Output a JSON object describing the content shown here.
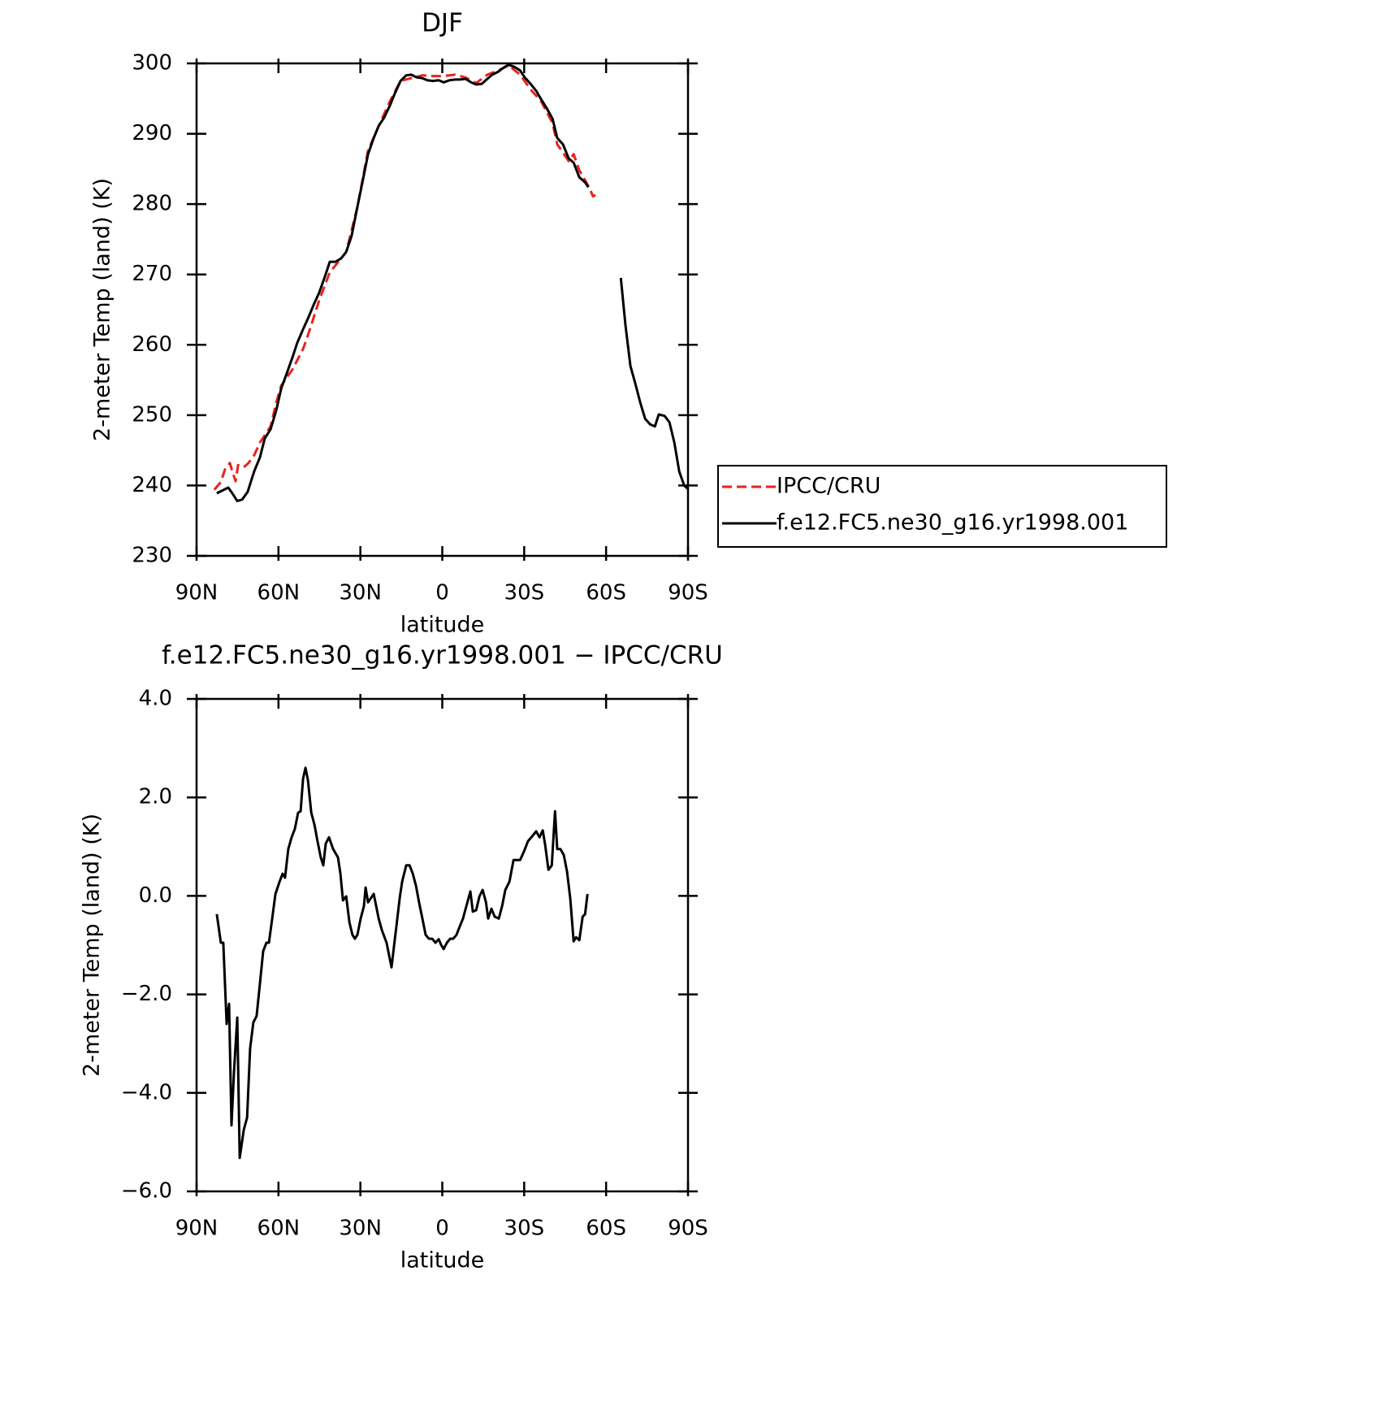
{
  "chart_data": [
    {
      "type": "line",
      "title": "DJF",
      "xlabel": "latitude",
      "ylabel": "2-meter Temp (land) (K)",
      "xlim": [
        90,
        -90
      ],
      "ylim": [
        230,
        300
      ],
      "xticks": [
        {
          "value": 90,
          "label": "90N"
        },
        {
          "value": 60,
          "label": "60N"
        },
        {
          "value": 30,
          "label": "30N"
        },
        0,
        {
          "value": -30,
          "label": "30S"
        },
        {
          "value": -60,
          "label": "60S"
        },
        {
          "value": -90,
          "label": "90S"
        }
      ],
      "yticks": [
        230,
        240,
        250,
        260,
        270,
        280,
        290,
        300
      ],
      "legend": "right",
      "series": [
        {
          "name": "IPCC/CRU",
          "color": "#e8221e",
          "dash": "dashed",
          "x": [
            83.5,
            81.1,
            79.6,
            77.8,
            76.9,
            75.7,
            74.8,
            72.7,
            71.0,
            68.9,
            66.8,
            62.9,
            60.8,
            59.0,
            54.9,
            51.0,
            48.9,
            45.1,
            41.2,
            37.0,
            35.2,
            31.1,
            27.2,
            23.3,
            19.2,
            15.3,
            11.4,
            7.3,
            3.4,
            -0.5,
            -4.6,
            -8.5,
            -12.4,
            -16.5,
            -20.4,
            -24.3,
            -28.5,
            -32.3,
            -36.2,
            -40.4,
            -42.1,
            -44.2,
            -46.3,
            -48.1,
            -50.2,
            -52.3,
            -54.0,
            -55.2,
            -56.1
          ],
          "values": [
            239.4,
            240.5,
            242.3,
            243.2,
            242.0,
            240.6,
            242.9,
            242.6,
            243.2,
            244.3,
            246.1,
            248.4,
            251.8,
            254.2,
            256.5,
            259.4,
            261.7,
            266.3,
            270.3,
            272.3,
            273.2,
            279.6,
            287.6,
            291.1,
            294.6,
            297.5,
            297.9,
            298.3,
            298.2,
            298.2,
            298.4,
            298.0,
            297.2,
            298.4,
            299.0,
            299.7,
            298.4,
            296.3,
            294.6,
            291.5,
            288.5,
            287.3,
            286.1,
            287.1,
            284.8,
            283.4,
            282.2,
            281.1,
            281.3
          ]
        },
        {
          "name": "f.e12.FC5.ne30_g16.yr1998.001",
          "color": "#000000",
          "dash": "solid",
          "x": [
            82.6,
            78.4,
            76.9,
            75.1,
            73.3,
            71.3,
            68.9,
            66.8,
            65.0,
            62.9,
            60.8,
            59.0,
            57.0,
            54.9,
            53.1,
            51.0,
            48.9,
            47.1,
            45.1,
            43.0,
            41.2,
            39.1,
            37.0,
            35.2,
            33.2,
            31.1,
            29.3,
            27.2,
            25.1,
            23.3,
            21.3,
            19.2,
            17.4,
            15.3,
            13.2,
            11.4,
            9.3,
            7.3,
            5.5,
            3.4,
            1.3,
            -0.5,
            -2.6,
            -4.6,
            -6.4,
            -8.5,
            -10.6,
            -12.4,
            -14.5,
            -16.5,
            -18.3,
            -20.4,
            -22.5,
            -24.3,
            -26.4,
            -28.5,
            -30.2,
            -32.3,
            -34.4,
            -36.2,
            -38.3,
            -40.4,
            -42.1,
            -44.2,
            -46.3,
            -48.1,
            -50.2,
            -52.3,
            -53.5,
            -60,
            -65.4,
            -67.1,
            -68.9,
            -70.7,
            -72.5,
            -74.3,
            -76.1,
            -77.9,
            -79.3,
            -81.4,
            -83.2,
            -85.0,
            -86.8,
            -88.6,
            -90
          ],
          "values": [
            238.9,
            239.7,
            238.9,
            237.8,
            238.0,
            239.1,
            242.0,
            244.0,
            246.7,
            248.0,
            250.7,
            253.8,
            255.9,
            258.2,
            260.3,
            262.2,
            264.0,
            265.7,
            267.4,
            269.7,
            271.8,
            271.8,
            272.3,
            273.2,
            275.5,
            279.6,
            283.0,
            287.1,
            289.4,
            291.1,
            292.3,
            294.0,
            295.7,
            297.5,
            298.3,
            298.4,
            298.0,
            297.9,
            297.6,
            297.5,
            297.6,
            297.3,
            297.6,
            297.7,
            297.7,
            297.8,
            297.3,
            297.0,
            297.1,
            297.8,
            298.4,
            298.8,
            299.4,
            299.8,
            299.5,
            299.0,
            298.0,
            297.1,
            296.1,
            294.9,
            293.6,
            292.1,
            289.4,
            288.5,
            286.5,
            285.9,
            283.8,
            283.1,
            282.4,
            null,
            269.5,
            262.8,
            257.0,
            254.5,
            251.8,
            249.5,
            248.7,
            248.4,
            250.1,
            249.9,
            249.0,
            246.1,
            242.0,
            240.0,
            239.5
          ]
        }
      ]
    },
    {
      "type": "line",
      "title": "f.e12.FC5.ne30_g16.yr1998.001 − IPCC/CRU",
      "xlabel": "latitude",
      "ylabel": "2-meter Temp (land) (K)",
      "xlim": [
        90,
        -90
      ],
      "ylim": [
        -6,
        4
      ],
      "xticks": [
        {
          "value": 90,
          "label": "90N"
        },
        {
          "value": 60,
          "label": "60N"
        },
        {
          "value": 30,
          "label": "30N"
        },
        0,
        {
          "value": -30,
          "label": "30S"
        },
        {
          "value": -60,
          "label": "60S"
        },
        {
          "value": -90,
          "label": "90S"
        }
      ],
      "yticks": [
        {
          "value": -6,
          "label": "−6.0"
        },
        {
          "value": -4,
          "label": "−4.0"
        },
        {
          "value": -2,
          "label": "−2.0"
        },
        {
          "value": 0,
          "label": "0.0"
        },
        {
          "value": 2,
          "label": "2.0"
        },
        {
          "value": 4,
          "label": "4.0"
        }
      ],
      "color": "#000000",
      "x": [
        82.6,
        81.1,
        80.2,
        79.0,
        78.1,
        77.2,
        76.3,
        75.1,
        74.2,
        72.7,
        71.5,
        70.4,
        69.2,
        68.0,
        66.8,
        65.6,
        64.4,
        63.5,
        62.3,
        61.1,
        59.6,
        58.5,
        57.6,
        56.4,
        55.2,
        54.0,
        52.8,
        51.9,
        51.0,
        50.1,
        49.2,
        48.0,
        46.8,
        45.7,
        44.5,
        43.6,
        42.7,
        41.5,
        40.0,
        38.2,
        37.3,
        36.4,
        35.2,
        34.0,
        32.9,
        32.0,
        31.1,
        29.9,
        28.7,
        28.1,
        27.2,
        25.1,
        23.3,
        22.1,
        20.4,
        18.6,
        17.7,
        16.8,
        15.6,
        14.7,
        13.2,
        12.0,
        10.8,
        9.6,
        8.5,
        7.3,
        6.1,
        4.9,
        3.7,
        2.5,
        1.3,
        0.4,
        -0.5,
        -1.7,
        -2.9,
        -4.0,
        -5.2,
        -6.4,
        -7.6,
        -8.8,
        -10.3,
        -11.2,
        -12.4,
        -13.6,
        -14.8,
        -16.0,
        -16.8,
        -18.0,
        -19.2,
        -20.7,
        -21.9,
        -23.1,
        -24.6,
        -26.1,
        -28.5,
        -29.9,
        -31.4,
        -33.2,
        -34.4,
        -35.6,
        -36.8,
        -37.7,
        -38.9,
        -40.1,
        -41.3,
        -42.1,
        -43.3,
        -44.5,
        -45.7,
        -46.9,
        -48.1,
        -49.0,
        -50.2,
        -51.4,
        -52.3,
        -53.2
      ],
      "values": [
        -0.37,
        -0.95,
        -0.95,
        -2.6,
        -2.19,
        -4.66,
        -3.59,
        -2.47,
        -5.32,
        -4.75,
        -4.5,
        -3.1,
        -2.57,
        -2.44,
        -1.78,
        -1.12,
        -0.95,
        -0.95,
        -0.46,
        0.04,
        0.29,
        0.45,
        0.37,
        0.95,
        1.19,
        1.36,
        1.69,
        1.72,
        2.38,
        2.6,
        2.35,
        1.69,
        1.44,
        1.11,
        0.78,
        0.62,
        1.06,
        1.19,
        0.95,
        0.78,
        0.45,
        -0.09,
        -0.01,
        -0.54,
        -0.79,
        -0.87,
        -0.79,
        -0.46,
        -0.21,
        0.17,
        -0.13,
        0.04,
        -0.46,
        -0.7,
        -0.95,
        -1.45,
        -1.03,
        -0.62,
        -0.04,
        0.29,
        0.62,
        0.62,
        0.45,
        0.2,
        -0.13,
        -0.46,
        -0.79,
        -0.87,
        -0.87,
        -0.95,
        -0.88,
        -1.0,
        -1.08,
        -0.95,
        -0.87,
        -0.87,
        -0.79,
        -0.62,
        -0.46,
        -0.21,
        0.09,
        -0.32,
        -0.29,
        -0.01,
        0.12,
        -0.13,
        -0.46,
        -0.26,
        -0.42,
        -0.46,
        -0.21,
        0.12,
        0.29,
        0.73,
        0.73,
        0.9,
        1.11,
        1.23,
        1.31,
        1.19,
        1.33,
        1.03,
        0.53,
        0.62,
        1.72,
        0.95,
        0.95,
        0.83,
        0.49,
        -0.06,
        -0.92,
        -0.84,
        -0.9,
        -0.42,
        -0.37,
        0.04
      ]
    }
  ]
}
